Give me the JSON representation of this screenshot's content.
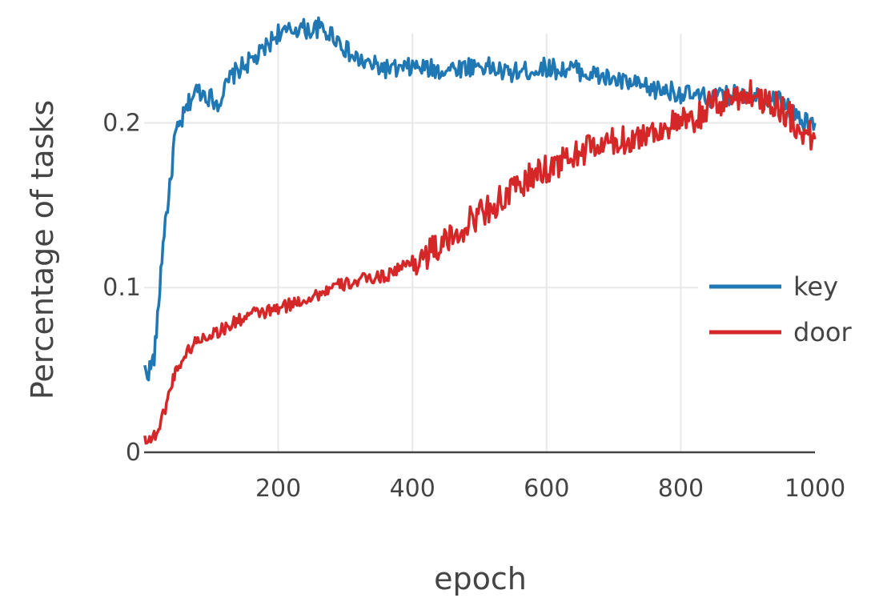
{
  "chart_data": {
    "type": "line",
    "title": "",
    "xlabel": "epoch",
    "ylabel": "Percentage of tasks",
    "xlim": [
      0,
      1000
    ],
    "ylim": [
      0,
      0.26
    ],
    "xticks": [
      200,
      400,
      600,
      800,
      1000
    ],
    "xtick_labels": [
      "200",
      "400",
      "600",
      "800",
      "1000"
    ],
    "yticks": [
      0,
      0.1,
      0.2
    ],
    "ytick_labels": [
      "0",
      "0.1",
      "0.2"
    ],
    "grid": true,
    "legend_position": "right",
    "series": [
      {
        "name": "key",
        "color": "#1f77b4",
        "x": [
          1,
          5,
          10,
          15,
          20,
          25,
          30,
          35,
          40,
          45,
          50,
          55,
          60,
          65,
          70,
          80,
          90,
          100,
          110,
          120,
          130,
          140,
          150,
          160,
          170,
          180,
          190,
          200,
          210,
          220,
          230,
          240,
          250,
          260,
          270,
          280,
          290,
          300,
          310,
          320,
          330,
          340,
          350,
          360,
          380,
          400,
          420,
          440,
          460,
          480,
          500,
          520,
          540,
          560,
          580,
          600,
          620,
          640,
          660,
          680,
          700,
          720,
          740,
          760,
          780,
          800,
          820,
          840,
          860,
          880,
          900,
          920,
          940,
          960,
          980,
          1000
        ],
        "y": [
          0.05,
          0.048,
          0.052,
          0.058,
          0.08,
          0.11,
          0.135,
          0.15,
          0.165,
          0.19,
          0.195,
          0.2,
          0.205,
          0.21,
          0.215,
          0.22,
          0.218,
          0.215,
          0.212,
          0.22,
          0.228,
          0.232,
          0.235,
          0.238,
          0.24,
          0.245,
          0.25,
          0.255,
          0.254,
          0.256,
          0.258,
          0.257,
          0.256,
          0.258,
          0.255,
          0.254,
          0.25,
          0.245,
          0.24,
          0.238,
          0.236,
          0.235,
          0.234,
          0.233,
          0.232,
          0.234,
          0.233,
          0.232,
          0.233,
          0.234,
          0.235,
          0.233,
          0.23,
          0.231,
          0.232,
          0.234,
          0.232,
          0.233,
          0.23,
          0.228,
          0.226,
          0.224,
          0.222,
          0.22,
          0.22,
          0.218,
          0.216,
          0.215,
          0.216,
          0.217,
          0.218,
          0.216,
          0.215,
          0.21,
          0.2,
          0.2
        ]
      },
      {
        "name": "door",
        "color": "#d62728",
        "x": [
          1,
          10,
          15,
          20,
          25,
          30,
          35,
          40,
          45,
          50,
          60,
          70,
          80,
          90,
          100,
          120,
          140,
          160,
          180,
          200,
          220,
          240,
          260,
          280,
          300,
          320,
          340,
          360,
          380,
          400,
          420,
          440,
          460,
          480,
          500,
          520,
          540,
          560,
          580,
          600,
          620,
          640,
          660,
          680,
          700,
          720,
          740,
          760,
          780,
          800,
          820,
          840,
          860,
          880,
          900,
          920,
          940,
          960,
          980,
          1000
        ],
        "y": [
          0.009,
          0.008,
          0.01,
          0.013,
          0.018,
          0.025,
          0.032,
          0.04,
          0.047,
          0.052,
          0.058,
          0.064,
          0.068,
          0.07,
          0.072,
          0.075,
          0.08,
          0.084,
          0.085,
          0.087,
          0.09,
          0.093,
          0.096,
          0.1,
          0.102,
          0.104,
          0.106,
          0.107,
          0.112,
          0.115,
          0.12,
          0.125,
          0.13,
          0.138,
          0.145,
          0.15,
          0.155,
          0.162,
          0.168,
          0.172,
          0.176,
          0.18,
          0.184,
          0.186,
          0.188,
          0.19,
          0.192,
          0.195,
          0.198,
          0.2,
          0.2,
          0.21,
          0.212,
          0.216,
          0.218,
          0.215,
          0.212,
          0.205,
          0.195,
          0.19
        ]
      }
    ]
  }
}
